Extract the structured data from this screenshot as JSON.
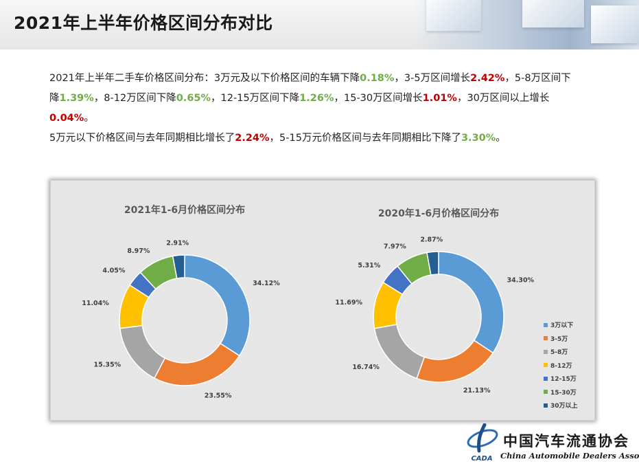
{
  "header": {
    "title": "2021年上半年价格区间分布对比"
  },
  "summary": {
    "p1": {
      "t1": "2021年上半年二手车价格区间分布：3万元及以下价格区间的车辆下降",
      "v1": "0.18%",
      "t2": "，3-5万区间增长",
      "v2": "2.42%",
      "t3": "，5-8万区间下降",
      "v3": "1.39%",
      "t4": "，8-12万区间下降",
      "v4": "0.65%",
      "t5": "，12-15万区间下降",
      "v5": "1.26%",
      "t6": "，15-30万区间增长",
      "v6": "1.01%",
      "t7": "，30万区间以上增长",
      "v7": "0.04%",
      "t8": "。"
    },
    "p2": {
      "t1": "5万元以下价格区间与去年同期相比增长了",
      "v1": "2.24%",
      "t2": "，5-15万元价格区间与去年同期相比下降了",
      "v2": "3.30%",
      "t3": "。"
    }
  },
  "chart_data": [
    {
      "type": "pie",
      "title": "2021年1-6月价格区间分布",
      "categories": [
        "3万以下",
        "3-5万",
        "5-8万",
        "8-12万",
        "12-15万",
        "15-30万",
        "30万以上"
      ],
      "values": [
        34.12,
        23.55,
        15.35,
        11.04,
        4.05,
        8.97,
        2.91
      ],
      "labels": [
        "34.12%",
        "23.55%",
        "15.35%",
        "11.04%",
        "4.05%",
        "8.97%",
        "2.91%"
      ]
    },
    {
      "type": "pie",
      "title": "2020年1-6月价格区间分布",
      "categories": [
        "3万以下",
        "3-5万",
        "5-8万",
        "8-12万",
        "12-15万",
        "15-30万",
        "30万以上"
      ],
      "values": [
        34.3,
        21.13,
        16.74,
        11.69,
        5.31,
        7.97,
        2.87
      ],
      "labels": [
        "34.30%",
        "21.13%",
        "16.74%",
        "11.69%",
        "5.31%",
        "7.97%",
        "2.87%"
      ]
    }
  ],
  "legend": {
    "placement": "right",
    "items": [
      "3万以下",
      "3-5万",
      "5-8万",
      "8-12万",
      "12-15万",
      "15-30万",
      "30万以上"
    ]
  },
  "colors": [
    "#5b9bd5",
    "#ed7d31",
    "#a5a5a5",
    "#ffc000",
    "#4472c4",
    "#70ad47",
    "#255e91"
  ],
  "logo": {
    "cn": "中国汽车流通协会",
    "en": "China Automobile Dealers Association",
    "mark": "CADA"
  }
}
